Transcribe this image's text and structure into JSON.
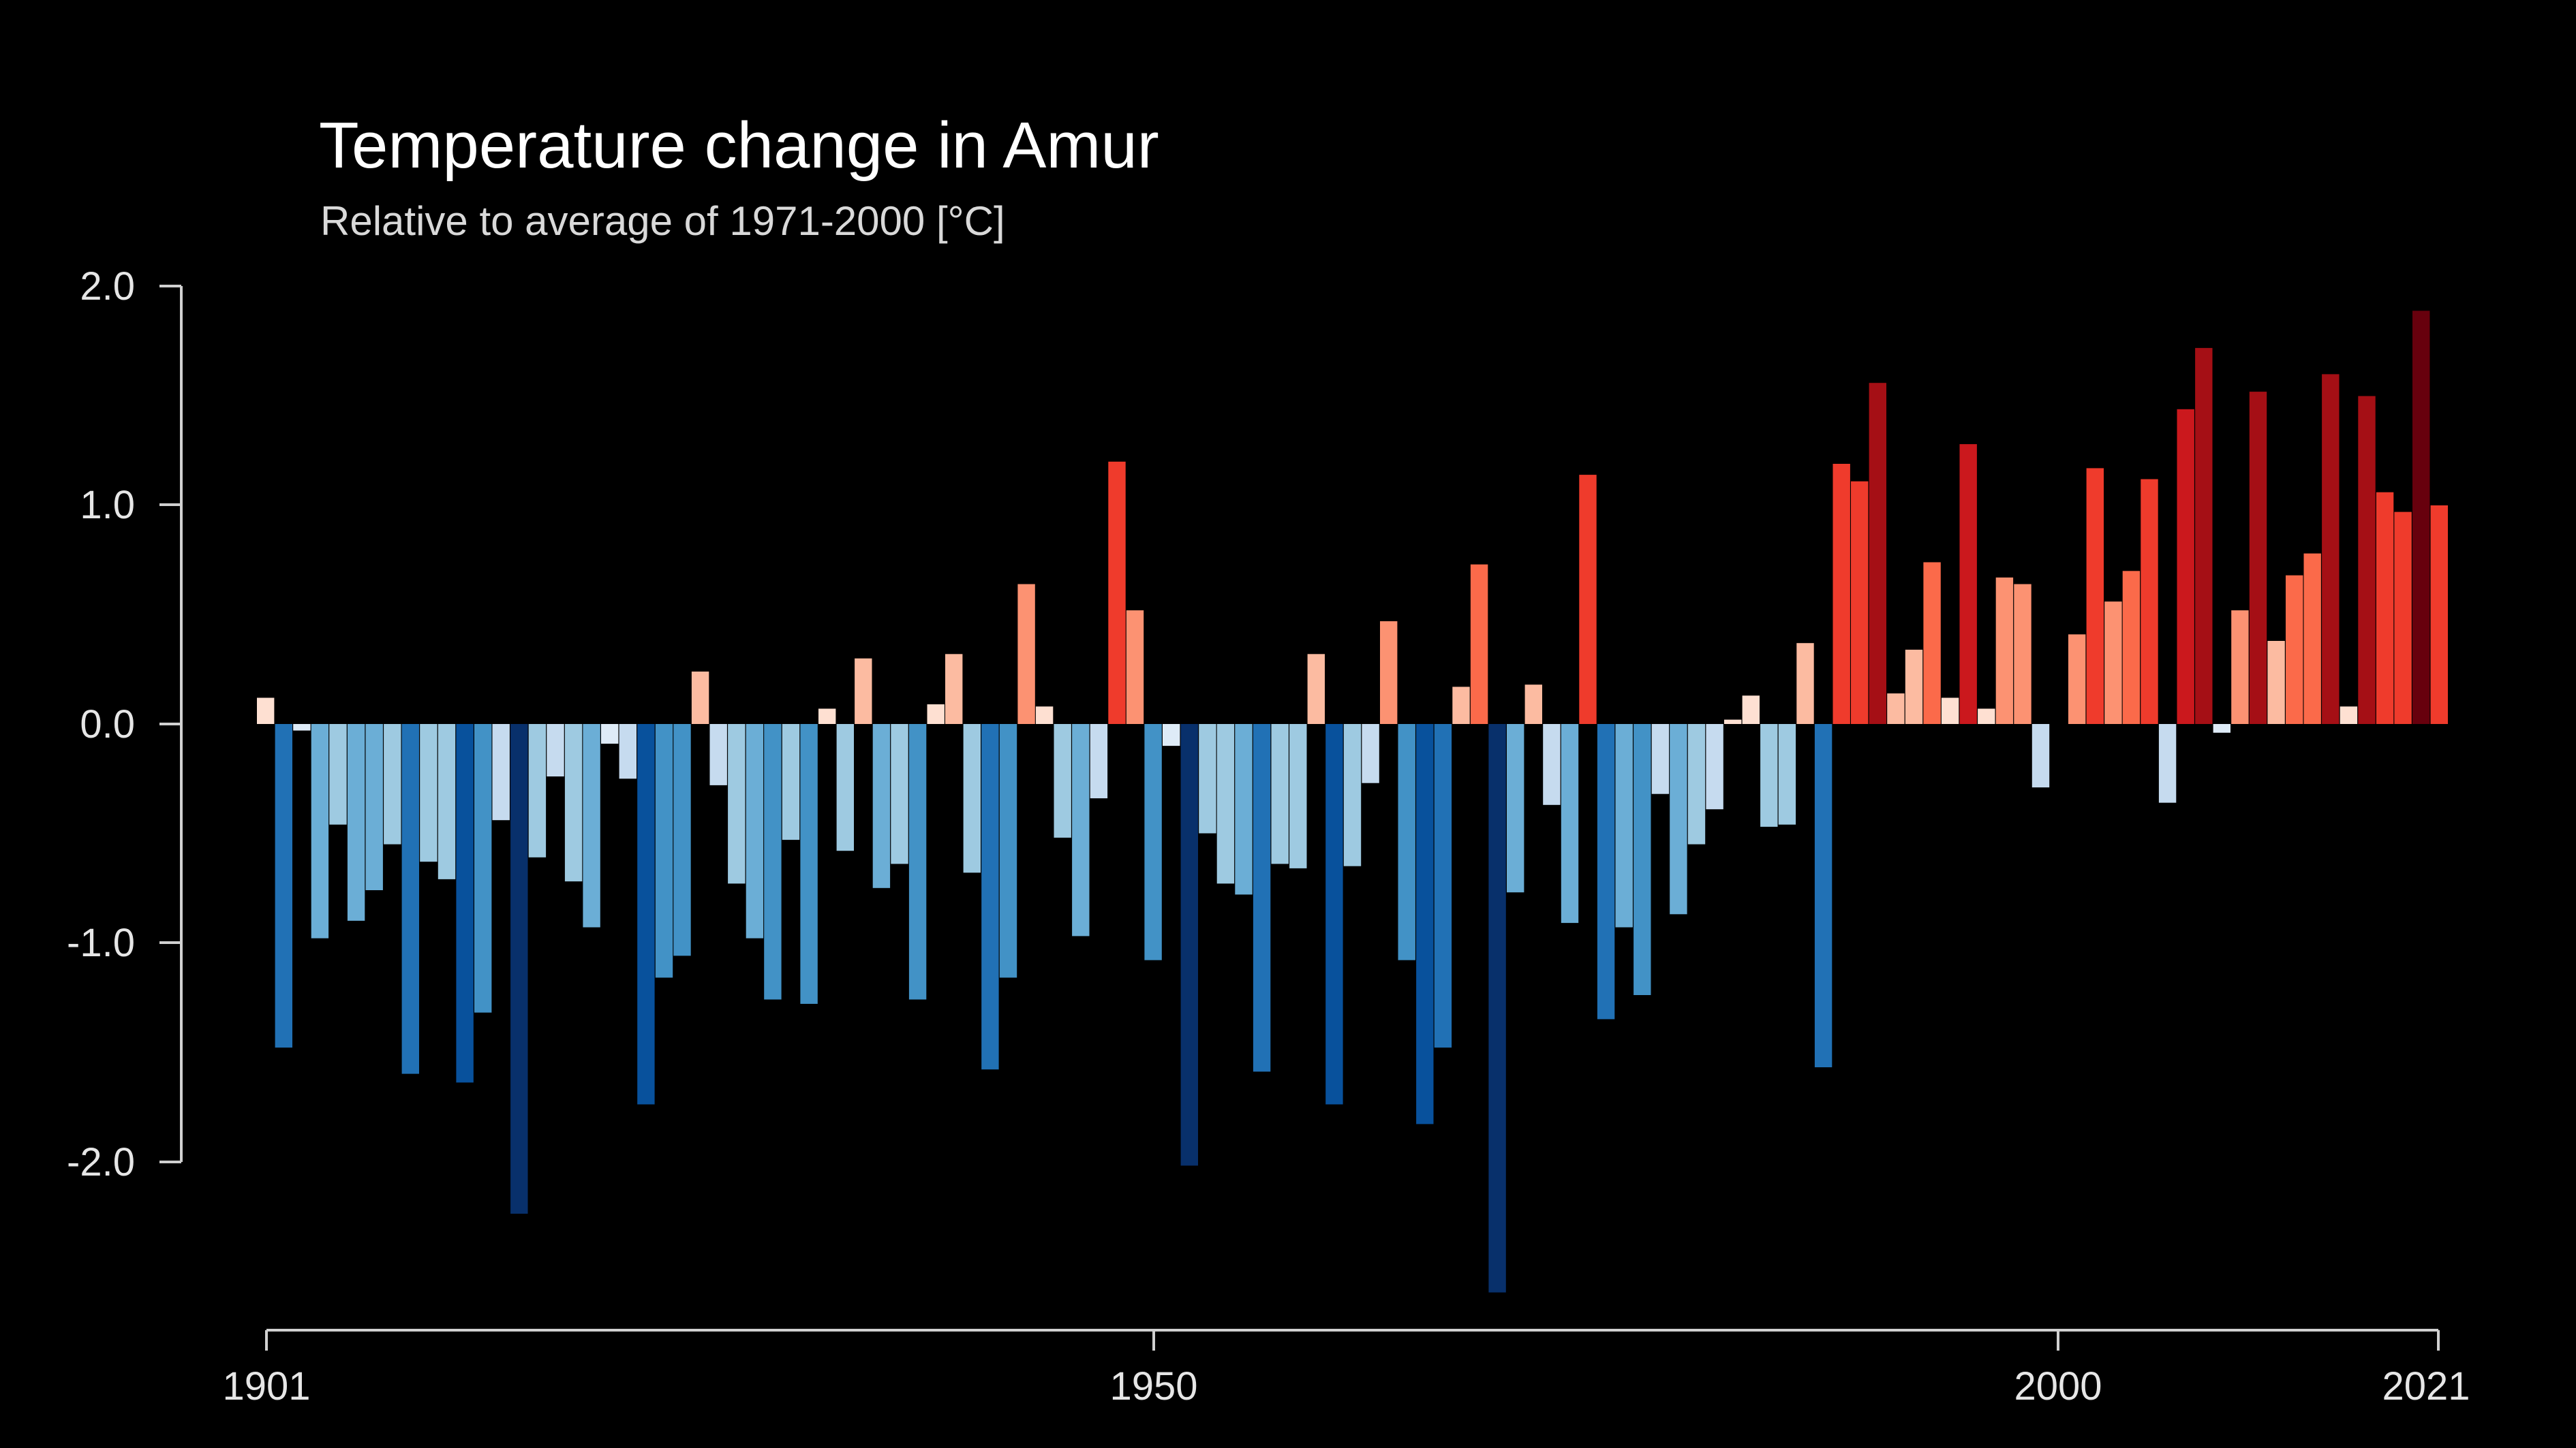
{
  "chart_data": {
    "type": "bar",
    "title": "Temperature change in Amur",
    "subtitle": "Relative to average of 1971-2000  [°C]",
    "xlabel": "",
    "ylabel": "",
    "x_start": 1901,
    "x_end": 2021,
    "x": [
      1901,
      1902,
      1903,
      1904,
      1905,
      1906,
      1907,
      1908,
      1909,
      1910,
      1911,
      1912,
      1913,
      1914,
      1915,
      1916,
      1917,
      1918,
      1919,
      1920,
      1921,
      1922,
      1923,
      1924,
      1925,
      1926,
      1927,
      1928,
      1929,
      1930,
      1931,
      1932,
      1933,
      1934,
      1935,
      1936,
      1937,
      1938,
      1939,
      1940,
      1941,
      1942,
      1943,
      1944,
      1945,
      1946,
      1947,
      1948,
      1949,
      1950,
      1951,
      1952,
      1953,
      1954,
      1955,
      1956,
      1957,
      1958,
      1959,
      1960,
      1961,
      1962,
      1963,
      1964,
      1965,
      1966,
      1967,
      1968,
      1969,
      1970,
      1971,
      1972,
      1973,
      1974,
      1975,
      1976,
      1977,
      1978,
      1979,
      1980,
      1981,
      1982,
      1983,
      1984,
      1985,
      1986,
      1987,
      1988,
      1989,
      1990,
      1991,
      1992,
      1993,
      1994,
      1995,
      1996,
      1997,
      1998,
      1999,
      2000,
      2001,
      2002,
      2003,
      2004,
      2005,
      2006,
      2007,
      2008,
      2009,
      2010,
      2011,
      2012,
      2013,
      2014,
      2015,
      2016,
      2017,
      2018,
      2019,
      2020,
      2021
    ],
    "values": [
      0.12,
      -1.48,
      -0.03,
      -0.98,
      -0.46,
      -0.9,
      -0.76,
      -0.55,
      -1.6,
      -0.63,
      -0.71,
      -1.64,
      -1.32,
      -0.44,
      -2.24,
      -0.61,
      -0.24,
      -0.72,
      -0.93,
      -0.09,
      -0.25,
      -1.74,
      -1.16,
      -1.06,
      0.24,
      -0.28,
      -0.73,
      -0.98,
      -1.26,
      -0.53,
      -1.28,
      0.07,
      -0.58,
      0.3,
      -0.75,
      -0.64,
      -1.26,
      0.09,
      0.32,
      -0.68,
      -1.58,
      -1.16,
      0.64,
      0.08,
      -0.52,
      -0.97,
      -0.34,
      1.2,
      0.52,
      -1.08,
      -0.1,
      -2.02,
      -0.5,
      -0.73,
      -0.78,
      -1.59,
      -0.64,
      -0.66,
      0.32,
      -1.74,
      -0.65,
      -0.27,
      0.47,
      -1.08,
      -1.83,
      -1.48,
      0.17,
      0.73,
      -2.6,
      -0.77,
      0.18,
      -0.37,
      -0.91,
      1.14,
      -1.35,
      -0.93,
      -1.24,
      -0.32,
      -0.87,
      -0.55,
      -0.39,
      0.02,
      0.13,
      -0.47,
      -0.46,
      0.37,
      -1.57,
      1.19,
      1.11,
      1.56,
      0.14,
      0.34,
      0.74,
      0.12,
      1.28,
      0.07,
      0.67,
      0.64,
      -0.29,
      0.0,
      0.41,
      1.17,
      0.56,
      0.7,
      1.12,
      -0.36,
      1.44,
      1.72,
      -0.04,
      0.52,
      1.52,
      0.38,
      0.68,
      0.78,
      1.6,
      0.08,
      1.5,
      1.06,
      0.97,
      1.89,
      1.0
    ],
    "ylim": [
      -2.6,
      2.0
    ],
    "y_ticks": [
      "2.0",
      "1.0",
      "0.0",
      "-1.0",
      "-2.0"
    ],
    "x_ticks": [
      "1901",
      "1950",
      "2000",
      "2021"
    ],
    "grid": false,
    "legend": "none",
    "colors": {
      "background": "#000000",
      "text": "#ffffff",
      "axis": "#d0d0d0",
      "palette_cold_to_warm": [
        "#08306b",
        "#08519c",
        "#2171b5",
        "#4292c6",
        "#6baed6",
        "#9ecae1",
        "#c6dbef",
        "#deebf7",
        "#fee0d2",
        "#fcbba1",
        "#fc9272",
        "#fb6a4a",
        "#ef3b2c",
        "#cb181d",
        "#a50f15",
        "#67000d"
      ]
    }
  }
}
